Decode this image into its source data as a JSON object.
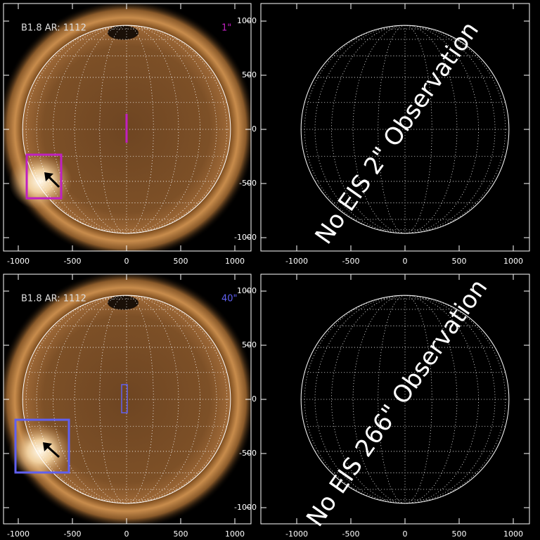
{
  "axes": {
    "xticks": [
      -1000,
      -500,
      0,
      500,
      1000
    ],
    "yticks": [
      1000,
      500,
      0,
      -500,
      -1000
    ]
  },
  "panels": [
    {
      "label": "B1.8 AR: 1112",
      "step": "1\""
    },
    {
      "message": "No EIS 2\" Observation"
    },
    {
      "label": "B1.8 AR: 1112",
      "step": "40\""
    },
    {
      "message": "No EIS 266\" Observation"
    }
  ]
}
